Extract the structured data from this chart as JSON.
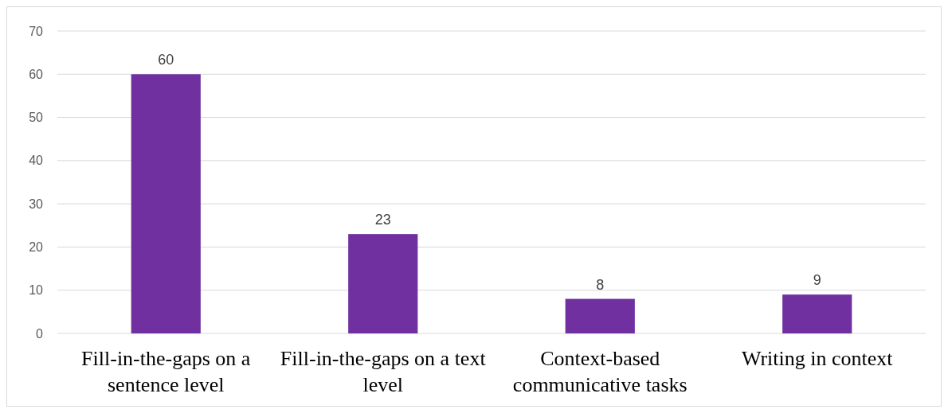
{
  "chart_data": {
    "type": "bar",
    "categories": [
      "Fill-in-the-gaps on a sentence level",
      "Fill-in-the-gaps on a text level",
      "Context-based communicative tasks",
      "Writing in context"
    ],
    "values": [
      60,
      23,
      8,
      9
    ],
    "color": "#7030a0",
    "ylim": [
      0,
      70
    ],
    "yticks": [
      0,
      10,
      20,
      30,
      40,
      50,
      60,
      70
    ],
    "grid": "y",
    "data_labels": true
  }
}
